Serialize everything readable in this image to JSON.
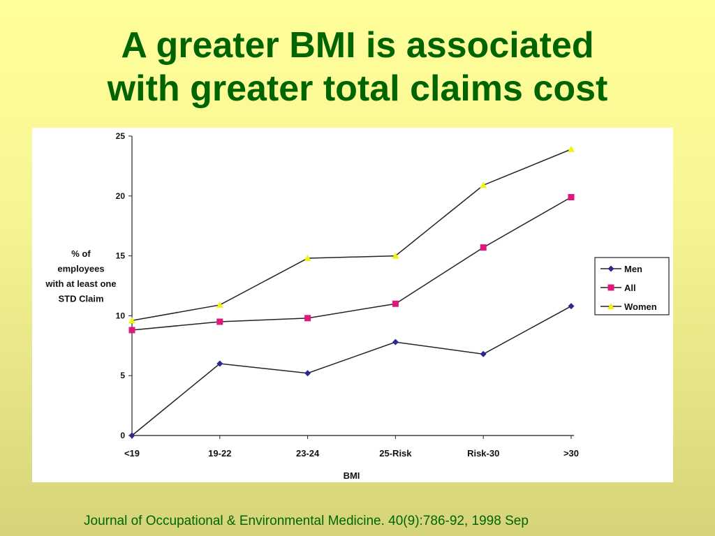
{
  "slide": {
    "title_line1": "A greater BMI is associated",
    "title_line2": "with greater total claims cost",
    "citation": "Journal of Occupational & Environmental Medicine. 40(9):786-92, 1998 Sep"
  },
  "colors": {
    "title": "#006400",
    "men": "#2b2a8c",
    "all": "#e0177e",
    "women": "#f2f20f",
    "line": "#222222"
  },
  "chart_data": {
    "type": "line",
    "xlabel": "BMI",
    "ylabel_lines": [
      "% of",
      "employees",
      "with at least one",
      "STD Claim"
    ],
    "categories": [
      "<19",
      "19-22",
      "23-24",
      "25-Risk",
      "Risk-30",
      ">30"
    ],
    "ylim": [
      0,
      25
    ],
    "yticks": [
      0,
      5,
      10,
      15,
      20,
      25
    ],
    "grid": false,
    "legend_position": "right",
    "series": [
      {
        "name": "Men",
        "marker": "diamond",
        "color": "#2b2a8c",
        "values": [
          0,
          6,
          5.2,
          7.8,
          6.8,
          10.8
        ]
      },
      {
        "name": "All",
        "marker": "square",
        "color": "#e0177e",
        "values": [
          8.8,
          9.5,
          9.8,
          11,
          15.7,
          19.9
        ]
      },
      {
        "name": "Women",
        "marker": "triangle",
        "color": "#f2f20f",
        "values": [
          9.6,
          10.9,
          14.8,
          15,
          20.9,
          23.9
        ]
      }
    ]
  }
}
